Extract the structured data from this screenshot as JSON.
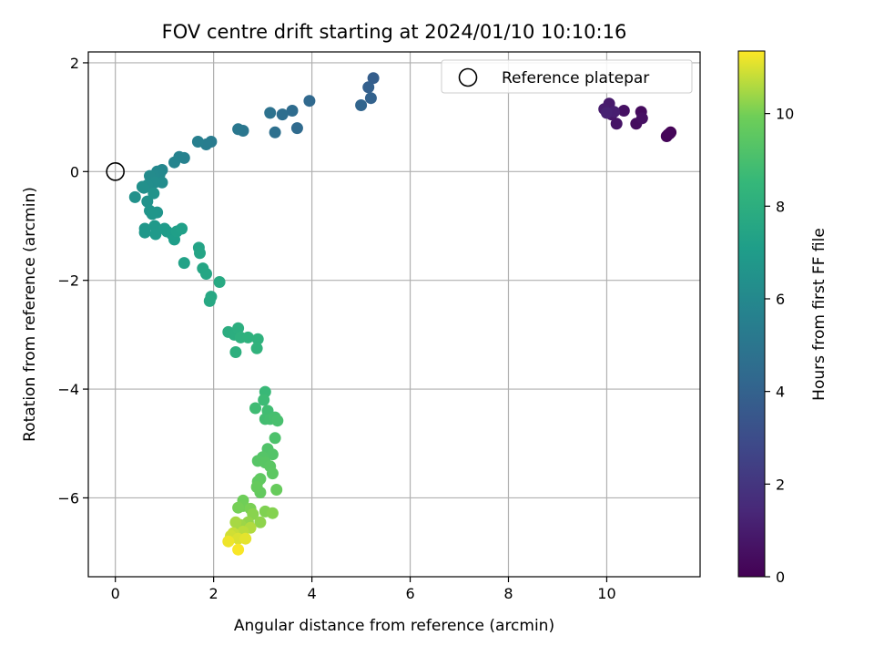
{
  "chart_data": {
    "type": "scatter",
    "title": "FOV centre drift starting at 2024/01/10 10:10:16",
    "xlabel": "Angular distance from reference (arcmin)",
    "ylabel": "Rotation from reference (arcmin)",
    "xlim": [
      -0.55,
      11.9
    ],
    "ylim": [
      -7.45,
      2.2
    ],
    "xticks": [
      "0",
      "2",
      "4",
      "6",
      "8",
      "10"
    ],
    "yticks": [
      "2",
      "0",
      "−2",
      "−4",
      "−6"
    ],
    "grid": true,
    "legend": {
      "placement": "top-right",
      "entries": [
        "Reference platepar"
      ]
    },
    "reference_point": {
      "x": 0,
      "y": 0
    },
    "colorbar": {
      "label": "Hours from first FF file",
      "range": [
        0,
        11.35
      ],
      "ticks": [
        "0",
        "2",
        "4",
        "6",
        "8",
        "10"
      ],
      "colormap": "viridis"
    },
    "series": [
      {
        "values": [
          [
            11.3,
            0.72,
            0.0
          ],
          [
            11.25,
            0.68,
            0.1
          ],
          [
            11.22,
            0.65,
            0.15
          ],
          [
            11.28,
            0.7,
            0.2
          ],
          [
            10.7,
            1.1,
            0.35
          ],
          [
            10.6,
            0.88,
            0.45
          ],
          [
            10.72,
            0.98,
            0.55
          ],
          [
            10.35,
            1.12,
            0.6
          ],
          [
            10.2,
            0.88,
            0.7
          ],
          [
            10.1,
            1.05,
            0.8
          ],
          [
            10.05,
            1.25,
            0.9
          ],
          [
            9.95,
            1.15,
            1.0
          ],
          [
            10.15,
            1.1,
            1.1
          ],
          [
            10.0,
            1.08,
            1.2
          ],
          [
            5.25,
            1.72,
            3.8
          ],
          [
            5.15,
            1.55,
            3.9
          ],
          [
            5.2,
            1.35,
            4.0
          ],
          [
            5.0,
            1.22,
            4.1
          ],
          [
            3.95,
            1.3,
            4.3
          ],
          [
            3.7,
            0.8,
            4.4
          ],
          [
            3.6,
            1.12,
            4.5
          ],
          [
            3.4,
            1.05,
            4.6
          ],
          [
            3.25,
            0.72,
            4.7
          ],
          [
            3.15,
            1.08,
            4.8
          ],
          [
            2.6,
            0.75,
            5.0
          ],
          [
            2.5,
            0.78,
            5.1
          ],
          [
            1.95,
            0.55,
            5.3
          ],
          [
            1.85,
            0.5,
            5.4
          ],
          [
            1.68,
            0.55,
            5.5
          ],
          [
            1.4,
            0.25,
            5.6
          ],
          [
            1.3,
            0.27,
            5.7
          ],
          [
            1.2,
            0.17,
            5.8
          ],
          [
            0.95,
            0.03,
            5.9
          ],
          [
            0.85,
            0.0,
            6.0
          ],
          [
            0.9,
            -0.05,
            6.05
          ],
          [
            0.78,
            -0.08,
            6.1
          ],
          [
            0.7,
            -0.08,
            6.15
          ],
          [
            0.95,
            -0.2,
            6.2
          ],
          [
            0.8,
            -0.2,
            6.25
          ],
          [
            0.65,
            -0.25,
            6.3
          ],
          [
            0.58,
            -0.3,
            6.35
          ],
          [
            0.55,
            -0.28,
            6.4
          ],
          [
            0.4,
            -0.47,
            6.45
          ],
          [
            0.65,
            -0.55,
            6.5
          ],
          [
            0.78,
            -0.4,
            6.55
          ],
          [
            0.7,
            -0.72,
            6.6
          ],
          [
            0.85,
            -0.75,
            6.65
          ],
          [
            0.75,
            -0.78,
            6.7
          ],
          [
            0.6,
            -1.05,
            6.75
          ],
          [
            0.6,
            -1.12,
            6.8
          ],
          [
            0.8,
            -1.0,
            6.85
          ],
          [
            0.82,
            -1.15,
            6.9
          ],
          [
            1.0,
            -1.05,
            6.95
          ],
          [
            1.05,
            -1.1,
            7.0
          ],
          [
            1.15,
            -1.15,
            7.05
          ],
          [
            1.2,
            -1.25,
            7.1
          ],
          [
            1.25,
            -1.1,
            7.15
          ],
          [
            1.35,
            -1.05,
            7.2
          ],
          [
            1.4,
            -1.68,
            7.3
          ],
          [
            1.7,
            -1.4,
            7.4
          ],
          [
            1.72,
            -1.5,
            7.45
          ],
          [
            1.78,
            -1.78,
            7.5
          ],
          [
            1.85,
            -1.88,
            7.55
          ],
          [
            1.95,
            -2.3,
            7.6
          ],
          [
            1.92,
            -2.38,
            7.65
          ],
          [
            2.12,
            -2.03,
            7.7
          ],
          [
            2.3,
            -2.95,
            7.9
          ],
          [
            2.42,
            -3.0,
            7.95
          ],
          [
            2.5,
            -2.88,
            8.0
          ],
          [
            2.45,
            -3.32,
            8.05
          ],
          [
            2.55,
            -3.05,
            8.1
          ],
          [
            2.7,
            -3.05,
            8.15
          ],
          [
            2.9,
            -3.08,
            8.2
          ],
          [
            2.88,
            -3.25,
            8.25
          ],
          [
            3.05,
            -4.05,
            8.6
          ],
          [
            3.02,
            -4.2,
            8.7
          ],
          [
            2.85,
            -4.35,
            8.75
          ],
          [
            3.1,
            -4.4,
            8.8
          ],
          [
            3.05,
            -4.55,
            8.85
          ],
          [
            3.15,
            -4.55,
            8.9
          ],
          [
            3.25,
            -4.52,
            8.95
          ],
          [
            3.3,
            -4.58,
            9.0
          ],
          [
            3.25,
            -4.9,
            9.1
          ],
          [
            3.1,
            -5.1,
            9.2
          ],
          [
            3.2,
            -5.2,
            9.25
          ],
          [
            3.0,
            -5.25,
            9.3
          ],
          [
            2.9,
            -5.32,
            9.35
          ],
          [
            3.05,
            -5.35,
            9.4
          ],
          [
            3.15,
            -5.42,
            9.45
          ],
          [
            3.2,
            -5.55,
            9.5
          ],
          [
            2.95,
            -5.65,
            9.55
          ],
          [
            2.9,
            -5.7,
            9.6
          ],
          [
            2.95,
            -5.9,
            9.65
          ],
          [
            2.88,
            -5.8,
            9.7
          ],
          [
            3.28,
            -5.85,
            9.75
          ],
          [
            2.6,
            -6.05,
            9.9
          ],
          [
            2.6,
            -6.15,
            9.95
          ],
          [
            2.5,
            -6.18,
            10.0
          ],
          [
            2.75,
            -6.2,
            10.05
          ],
          [
            3.05,
            -6.25,
            10.1
          ],
          [
            3.2,
            -6.28,
            10.15
          ],
          [
            2.8,
            -6.3,
            10.2
          ],
          [
            2.95,
            -6.45,
            10.25
          ],
          [
            2.7,
            -6.45,
            10.3
          ],
          [
            2.55,
            -6.5,
            10.4
          ],
          [
            2.45,
            -6.45,
            10.5
          ],
          [
            2.75,
            -6.55,
            10.6
          ],
          [
            2.6,
            -6.62,
            10.7
          ],
          [
            2.4,
            -6.65,
            10.8
          ],
          [
            2.35,
            -6.7,
            10.9
          ],
          [
            2.5,
            -6.75,
            11.0
          ],
          [
            2.65,
            -6.75,
            11.1
          ],
          [
            2.3,
            -6.8,
            11.2
          ],
          [
            2.5,
            -6.95,
            11.3
          ]
        ]
      }
    ]
  }
}
